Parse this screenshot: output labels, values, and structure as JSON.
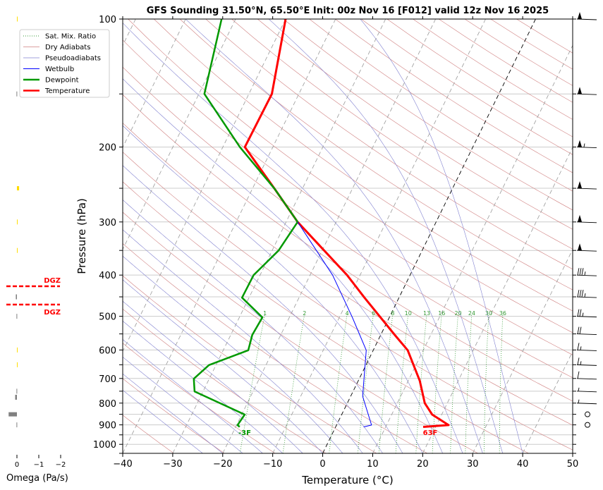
{
  "chart_data": {
    "type": "line",
    "subtype": "skew-t log-p sounding",
    "title": "GFS Sounding 31.50°N, 65.50°E Init: 00z Nov 16 [F012] valid 12z Nov 16 2025",
    "xlabel": "Temperature (°C)",
    "ylabel": "Pressure (hPa)",
    "xlim": [
      -40,
      50
    ],
    "ylim": [
      1050,
      100
    ],
    "x_ticks": [
      "−40",
      "−30",
      "−20",
      "−10",
      "0",
      "10",
      "20",
      "30",
      "40",
      "50"
    ],
    "x_tick_values": [
      -40,
      -30,
      -20,
      -10,
      0,
      10,
      20,
      30,
      40,
      50
    ],
    "y_ticks": [
      "100",
      "200",
      "300",
      "400",
      "500",
      "600",
      "700",
      "800",
      "900",
      "1000"
    ],
    "y_tick_values": [
      100,
      200,
      300,
      400,
      500,
      600,
      700,
      800,
      900,
      1000
    ],
    "legend": {
      "placement": "top-left",
      "entries": [
        "Sat. Mix. Ratio",
        "Dry Adiabats",
        "Pseudoadiabats",
        "Wetbulb",
        "Dewpoint",
        "Temperature"
      ]
    },
    "colors": {
      "temperature": "#ff0000",
      "dewpoint": "#009900",
      "wetbulb": "#0000ff",
      "dry_adiabat": "#d08080",
      "pseudoadiabat": "#8080d0",
      "mixing_ratio": "#339933",
      "isotherm": "#999999",
      "zero_isotherm": "#000000",
      "dgz": "#ff0000",
      "omega_bar": "#808080",
      "omega_highlight": "#ffdd00"
    },
    "series": [
      {
        "name": "Temperature",
        "points": [
          [
            100,
            -50
          ],
          [
            150,
            -45.4
          ],
          [
            200,
            -45.6
          ],
          [
            251,
            -35.5
          ],
          [
            300,
            -27.7
          ],
          [
            400,
            -12.6
          ],
          [
            452,
            -6.9
          ],
          [
            553,
            2.8
          ],
          [
            601,
            6.9
          ],
          [
            709,
            12.3
          ],
          [
            800,
            15.5
          ],
          [
            851,
            18.1
          ],
          [
            901,
            22.4
          ],
          [
            910,
            17.5
          ]
        ]
      },
      {
        "name": "Dewpoint",
        "points": [
          [
            100,
            -62.8
          ],
          [
            150,
            -58.9
          ],
          [
            200,
            -46.6
          ],
          [
            251,
            -35.5
          ],
          [
            300,
            -27.7
          ],
          [
            350,
            -28.7
          ],
          [
            400,
            -31.3
          ],
          [
            452,
            -31.4
          ],
          [
            503,
            -25.4
          ],
          [
            553,
            -25.7
          ],
          [
            601,
            -25
          ],
          [
            651,
            -31.4
          ],
          [
            701,
            -33.1
          ],
          [
            751,
            -31.7
          ],
          [
            851,
            -19.4
          ],
          [
            901,
            -19.8
          ],
          [
            910,
            -19.2
          ]
        ]
      },
      {
        "name": "Wetbulb",
        "points": [
          [
            300,
            -27.7
          ],
          [
            400,
            -15.5
          ],
          [
            503,
            -7.4
          ],
          [
            601,
            -1.4
          ],
          [
            771,
            2.4
          ],
          [
            901,
            7
          ],
          [
            910,
            5.6
          ]
        ]
      }
    ],
    "mixing_ratio_labels": [
      "1",
      "2",
      "4",
      "6",
      "8",
      "10",
      "13",
      "16",
      "20",
      "24",
      "30",
      "36"
    ],
    "mixing_ratio_values": [
      1,
      2,
      4,
      6,
      8,
      10,
      13,
      16,
      20,
      24,
      30,
      36
    ],
    "surface_labels": {
      "temperature": "63F",
      "dewpoint": "-3F"
    },
    "wind_barbs": [
      {
        "p": 100,
        "kt": 50
      },
      {
        "p": 150,
        "kt": 50
      },
      {
        "p": 200,
        "kt": 55
      },
      {
        "p": 250,
        "kt": 50
      },
      {
        "p": 300,
        "kt": 50
      },
      {
        "p": 350,
        "kt": 50
      },
      {
        "p": 400,
        "kt": 35
      },
      {
        "p": 450,
        "kt": 35
      },
      {
        "p": 500,
        "kt": 25
      },
      {
        "p": 550,
        "kt": 20
      },
      {
        "p": 600,
        "kt": 15
      },
      {
        "p": 650,
        "kt": 15
      },
      {
        "p": 700,
        "kt": 10
      },
      {
        "p": 750,
        "kt": 5
      },
      {
        "p": 800,
        "kt": 5
      },
      {
        "p": 850,
        "kt": 0
      },
      {
        "p": 900,
        "kt": 0
      }
    ],
    "omega_panel": {
      "xlabel": "Omega (Pa/s)",
      "x_ticks": [
        "0",
        "−1",
        "−2"
      ],
      "x_tick_values": [
        0,
        -1,
        -2
      ],
      "dgz_label": "DGZ",
      "dgz_bounds_hpa": [
        410,
        470
      ],
      "bars": [
        {
          "p": 100,
          "omega": -0.02,
          "highlight": true
        },
        {
          "p": 150,
          "omega": 0.02,
          "highlight": false
        },
        {
          "p": 250,
          "omega": -0.1,
          "highlight": true
        },
        {
          "p": 300,
          "omega": -0.02,
          "highlight": true
        },
        {
          "p": 350,
          "omega": -0.02,
          "highlight": true
        },
        {
          "p": 450,
          "omega": 0.05,
          "highlight": false
        },
        {
          "p": 500,
          "omega": 0.02,
          "highlight": false
        },
        {
          "p": 600,
          "omega": -0.02,
          "highlight": true
        },
        {
          "p": 650,
          "omega": -0.02,
          "highlight": true
        },
        {
          "p": 750,
          "omega": 0.02,
          "highlight": false
        },
        {
          "p": 775,
          "omega": 0.08,
          "highlight": false
        },
        {
          "p": 850,
          "omega": 0.38,
          "highlight": false
        },
        {
          "p": 900,
          "omega": 0.02,
          "highlight": false
        }
      ]
    }
  }
}
